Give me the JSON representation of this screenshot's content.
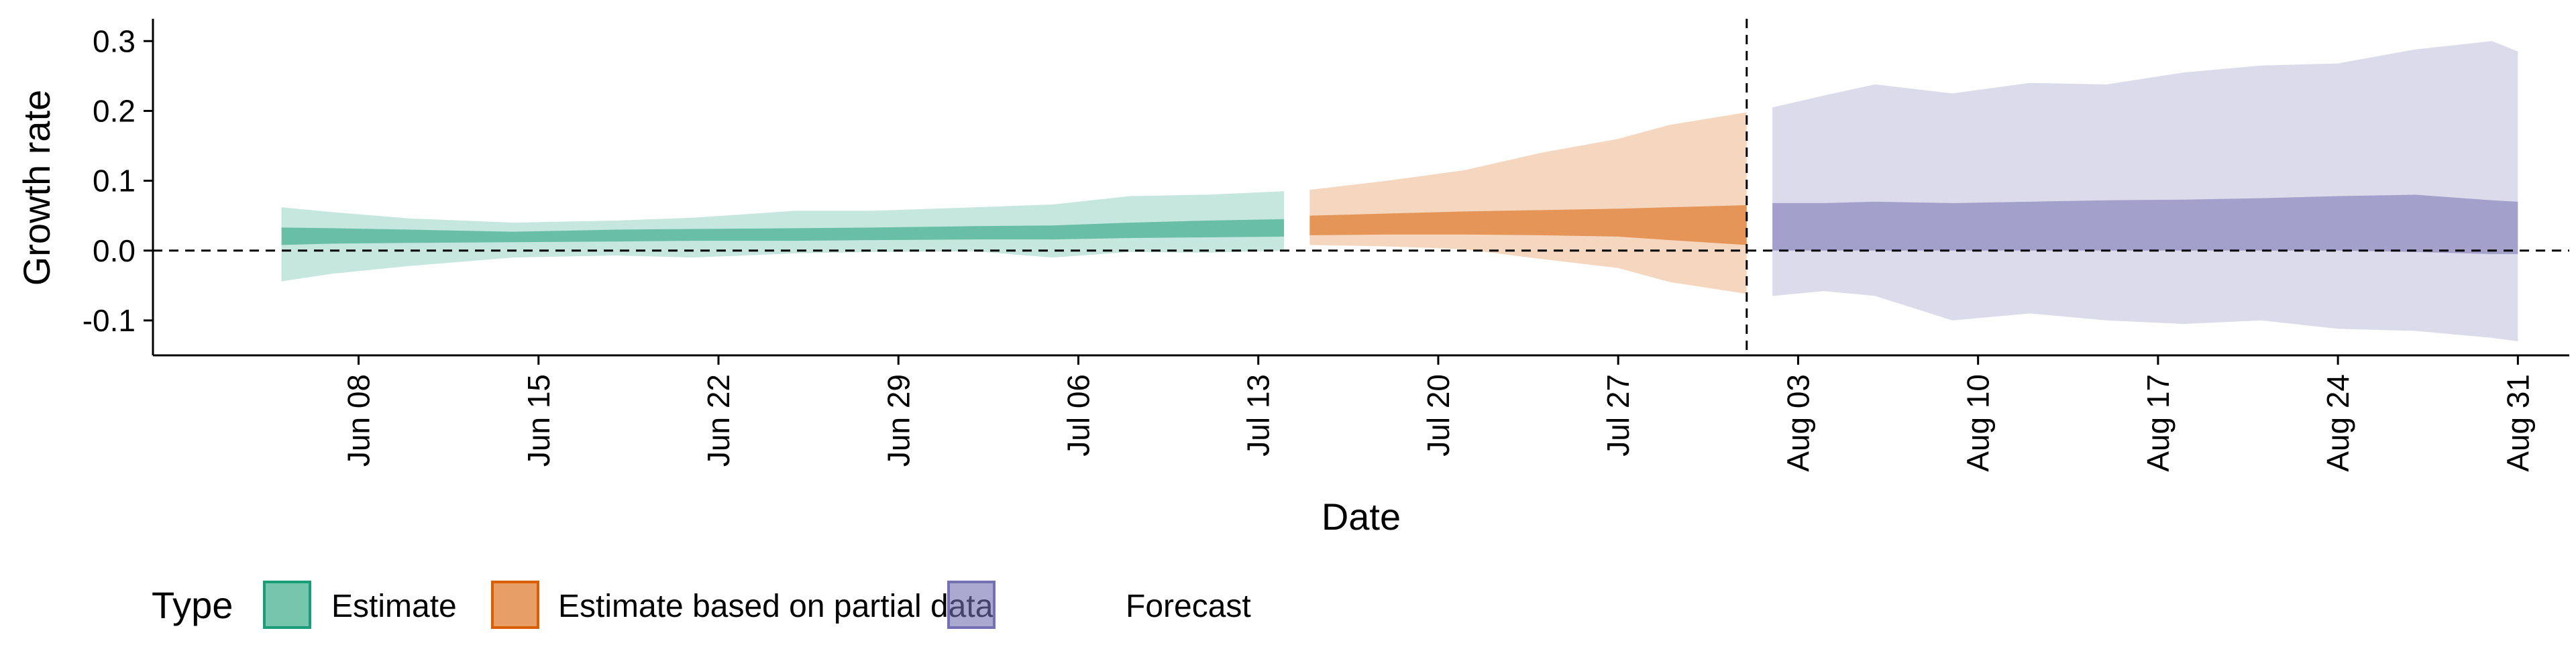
{
  "chart_data": {
    "type": "area",
    "xlabel": "Date",
    "ylabel": "Growth rate",
    "x_range": [
      "2020-05-31",
      "2020-09-02"
    ],
    "y_range": [
      -0.15,
      0.33
    ],
    "y_ticks": [
      -0.1,
      0.0,
      0.1,
      0.2,
      0.3
    ],
    "y_tick_labels": [
      "-0.1",
      "0.0",
      "0.1",
      "0.2",
      "0.3"
    ],
    "x_ticks": [
      "2020-06-08",
      "2020-06-15",
      "2020-06-22",
      "2020-06-29",
      "2020-07-06",
      "2020-07-13",
      "2020-07-20",
      "2020-07-27",
      "2020-08-03",
      "2020-08-10",
      "2020-08-17",
      "2020-08-24",
      "2020-08-31"
    ],
    "x_tick_labels": [
      "Jun 08",
      "Jun 15",
      "Jun 22",
      "Jun 29",
      "Jul 06",
      "Jul 13",
      "Jul 20",
      "Jul 27",
      "Aug 03",
      "Aug 10",
      "Aug 17",
      "Aug 24",
      "Aug 31"
    ],
    "hline": 0,
    "vline": "2020-08-01",
    "grid": false,
    "legend": {
      "title": "Type",
      "position": "bottom-left",
      "entries": [
        "Estimate",
        "Estimate based on partial data",
        "Forecast"
      ]
    },
    "series": [
      {
        "name": "Estimate",
        "color": "#1b9e77",
        "points": [
          {
            "date": "2020-06-05",
            "outer_lo": -0.044,
            "inner_lo": 0.008,
            "inner_hi": 0.033,
            "outer_hi": 0.062
          },
          {
            "date": "2020-06-07",
            "outer_lo": -0.033,
            "inner_lo": 0.01,
            "inner_hi": 0.032,
            "outer_hi": 0.055
          },
          {
            "date": "2020-06-10",
            "outer_lo": -0.022,
            "inner_lo": 0.011,
            "inner_hi": 0.03,
            "outer_hi": 0.046
          },
          {
            "date": "2020-06-14",
            "outer_lo": -0.01,
            "inner_lo": 0.012,
            "inner_hi": 0.027,
            "outer_hi": 0.04
          },
          {
            "date": "2020-06-18",
            "outer_lo": -0.007,
            "inner_lo": 0.013,
            "inner_hi": 0.03,
            "outer_hi": 0.043
          },
          {
            "date": "2020-06-21",
            "outer_lo": -0.01,
            "inner_lo": 0.014,
            "inner_hi": 0.031,
            "outer_hi": 0.047
          },
          {
            "date": "2020-06-25",
            "outer_lo": -0.004,
            "inner_lo": 0.014,
            "inner_hi": 0.032,
            "outer_hi": 0.057
          },
          {
            "date": "2020-06-28",
            "outer_lo": -0.002,
            "inner_lo": 0.015,
            "inner_hi": 0.033,
            "outer_hi": 0.057
          },
          {
            "date": "2020-07-02",
            "outer_lo": -0.001,
            "inner_lo": 0.016,
            "inner_hi": 0.035,
            "outer_hi": 0.062
          },
          {
            "date": "2020-07-05",
            "outer_lo": -0.01,
            "inner_lo": 0.016,
            "inner_hi": 0.036,
            "outer_hi": 0.066
          },
          {
            "date": "2020-07-08",
            "outer_lo": -0.002,
            "inner_lo": 0.018,
            "inner_hi": 0.04,
            "outer_hi": 0.078
          },
          {
            "date": "2020-07-11",
            "outer_lo": -0.003,
            "inner_lo": 0.019,
            "inner_hi": 0.043,
            "outer_hi": 0.08
          },
          {
            "date": "2020-07-14",
            "outer_lo": 0.0,
            "inner_lo": 0.02,
            "inner_hi": 0.045,
            "outer_hi": 0.085
          }
        ]
      },
      {
        "name": "Estimate based on partial data",
        "color": "#d95f02",
        "points": [
          {
            "date": "2020-07-15",
            "outer_lo": 0.008,
            "inner_lo": 0.022,
            "inner_hi": 0.05,
            "outer_hi": 0.087
          },
          {
            "date": "2020-07-18",
            "outer_lo": 0.006,
            "inner_lo": 0.023,
            "inner_hi": 0.053,
            "outer_hi": 0.1
          },
          {
            "date": "2020-07-21",
            "outer_lo": 0.002,
            "inner_lo": 0.023,
            "inner_hi": 0.056,
            "outer_hi": 0.115
          },
          {
            "date": "2020-07-24",
            "outer_lo": -0.012,
            "inner_lo": 0.022,
            "inner_hi": 0.058,
            "outer_hi": 0.14
          },
          {
            "date": "2020-07-27",
            "outer_lo": -0.025,
            "inner_lo": 0.02,
            "inner_hi": 0.06,
            "outer_hi": 0.16
          },
          {
            "date": "2020-07-29",
            "outer_lo": -0.045,
            "inner_lo": 0.015,
            "inner_hi": 0.062,
            "outer_hi": 0.18
          },
          {
            "date": "2020-08-01",
            "outer_lo": -0.062,
            "inner_lo": 0.008,
            "inner_hi": 0.065,
            "outer_hi": 0.198
          }
        ]
      },
      {
        "name": "Forecast",
        "color": "#7570b3",
        "points": [
          {
            "date": "2020-08-02",
            "outer_lo": -0.065,
            "inner_lo": 0.0,
            "inner_hi": 0.068,
            "outer_hi": 0.205
          },
          {
            "date": "2020-08-04",
            "outer_lo": -0.058,
            "inner_lo": 0.0,
            "inner_hi": 0.068,
            "outer_hi": 0.222
          },
          {
            "date": "2020-08-06",
            "outer_lo": -0.065,
            "inner_lo": 0.0,
            "inner_hi": 0.07,
            "outer_hi": 0.238
          },
          {
            "date": "2020-08-09",
            "outer_lo": -0.1,
            "inner_lo": 0.0,
            "inner_hi": 0.068,
            "outer_hi": 0.225
          },
          {
            "date": "2020-08-12",
            "outer_lo": -0.09,
            "inner_lo": 0.0,
            "inner_hi": 0.07,
            "outer_hi": 0.24
          },
          {
            "date": "2020-08-15",
            "outer_lo": -0.1,
            "inner_lo": 0.0,
            "inner_hi": 0.072,
            "outer_hi": 0.238
          },
          {
            "date": "2020-08-18",
            "outer_lo": -0.105,
            "inner_lo": 0.0,
            "inner_hi": 0.073,
            "outer_hi": 0.255
          },
          {
            "date": "2020-08-21",
            "outer_lo": -0.1,
            "inner_lo": 0.0,
            "inner_hi": 0.075,
            "outer_hi": 0.265
          },
          {
            "date": "2020-08-24",
            "outer_lo": -0.112,
            "inner_lo": 0.0,
            "inner_hi": 0.078,
            "outer_hi": 0.268
          },
          {
            "date": "2020-08-27",
            "outer_lo": -0.115,
            "inner_lo": -0.002,
            "inner_hi": 0.08,
            "outer_hi": 0.288
          },
          {
            "date": "2020-08-30",
            "outer_lo": -0.125,
            "inner_lo": -0.005,
            "inner_hi": 0.072,
            "outer_hi": 0.3
          },
          {
            "date": "2020-08-31",
            "outer_lo": -0.13,
            "inner_lo": -0.005,
            "inner_hi": 0.07,
            "outer_hi": 0.285
          }
        ]
      }
    ]
  }
}
